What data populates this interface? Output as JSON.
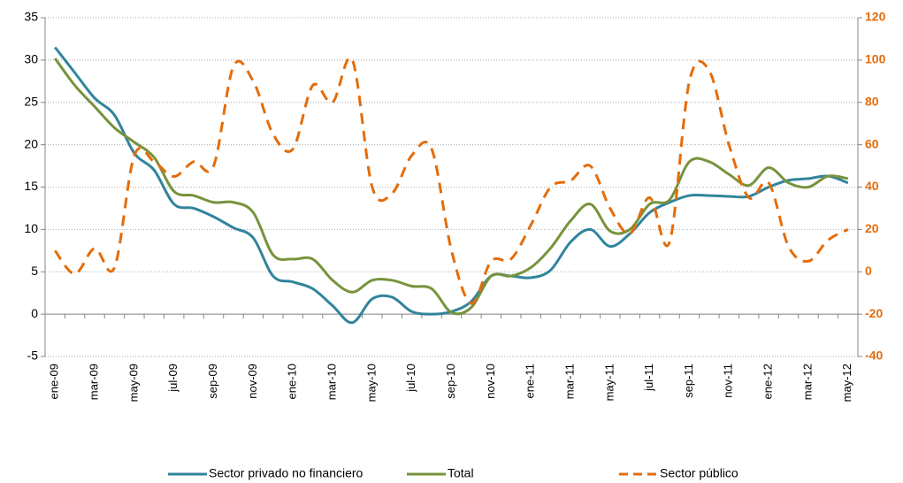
{
  "chart_data": {
    "type": "line",
    "categories": [
      "ene-09",
      null,
      "mar-09",
      null,
      "may-09",
      null,
      "jul-09",
      null,
      "sep-09",
      null,
      "nov-09",
      null,
      "ene-10",
      null,
      "mar-10",
      null,
      "may-10",
      null,
      "jul-10",
      null,
      "sep-10",
      null,
      "nov-10",
      null,
      "ene-11",
      null,
      "mar-11",
      null,
      "may-11",
      null,
      "jul-11",
      null,
      "sep-11",
      null,
      "nov-11",
      null,
      "ene-12",
      null,
      "mar-12",
      null,
      "may-12"
    ],
    "series": [
      {
        "name": "Sector privado no financiero",
        "color": "#31849b",
        "values": [
          31.5,
          28.5,
          25.5,
          23.5,
          19,
          17,
          13,
          12.5,
          11.5,
          10.2,
          9,
          4.5,
          3.8,
          3.0,
          1,
          -1,
          1.8,
          2,
          0.3,
          0,
          0.3,
          1.5,
          4.5,
          4.5,
          4.3,
          5.2,
          8.5,
          10,
          8,
          9.5,
          12,
          13.2,
          14,
          14,
          13.9,
          13.9,
          15,
          15.8,
          16,
          16.3,
          15.5
        ]
      },
      {
        "name": "Total",
        "color": "#77933c",
        "values": [
          30.2,
          27,
          24.5,
          22,
          20.3,
          18.5,
          14.5,
          14,
          13.2,
          13.2,
          12,
          7,
          6.5,
          6.5,
          4,
          2.6,
          4,
          4,
          3.3,
          3,
          0.2,
          0.8,
          4.5,
          4.5,
          5.5,
          7.8,
          11,
          13,
          9.8,
          10,
          13,
          13.5,
          18,
          18,
          16.5,
          15.2,
          17.3,
          15.5,
          15,
          16.3,
          16
        ]
      },
      {
        "name": "Sector público",
        "color": "#e46c0a",
        "dashed": true,
        "axis": "y2",
        "values": [
          10,
          -1,
          11,
          2,
          55,
          52,
          45,
          52,
          50,
          97,
          90,
          65,
          58,
          88,
          80,
          100,
          40,
          37,
          55,
          58,
          10,
          -15,
          5,
          6,
          22,
          40,
          43,
          50,
          30,
          18,
          35,
          14,
          90,
          95,
          60,
          35,
          42,
          12,
          5,
          15,
          20
        ]
      }
    ],
    "ylim": [
      -5,
      35
    ],
    "yticks": [
      -5,
      0,
      5,
      10,
      15,
      20,
      25,
      30,
      35
    ],
    "y2lim": [
      -40,
      120
    ],
    "y2ticks": [
      -40,
      -20,
      0,
      20,
      40,
      60,
      80,
      100,
      120
    ],
    "grid": true,
    "legend": "bottom"
  }
}
